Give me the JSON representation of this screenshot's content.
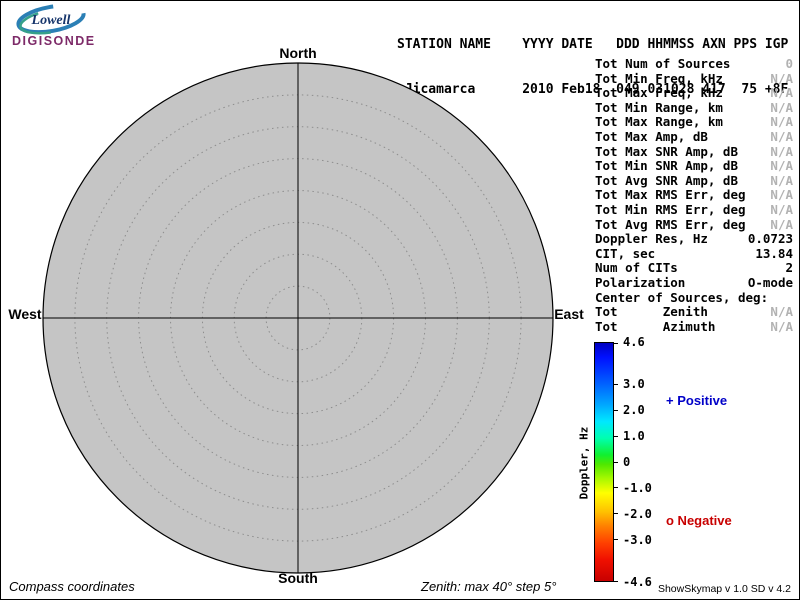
{
  "logo": {
    "line1": "Lowell",
    "line2": "DIGISONDE"
  },
  "header": {
    "line1": "STATION NAME    YYYY DATE   DDD HHMMSS AXN PPS IGP",
    "line2": " Jicamarca      2010 Feb18  049 031028 417  75 +8F"
  },
  "skymap": {
    "north": "North",
    "south": "South",
    "east": "East",
    "west": "West",
    "zenith_max_deg": 40,
    "zenith_step_deg": 5,
    "ring_count": 8,
    "sources": []
  },
  "stats": {
    "rows": [
      {
        "label": "Tot Num of Sources",
        "value": "0",
        "muted": true
      },
      {
        "label": "Tot Min Freq, kHz",
        "value": "N/A",
        "muted": true
      },
      {
        "label": "Tot Max Freq, kHz",
        "value": "N/A",
        "muted": true
      },
      {
        "label": "Tot Min Range, km",
        "value": "N/A",
        "muted": true
      },
      {
        "label": "Tot Max Range, km",
        "value": "N/A",
        "muted": true
      },
      {
        "label": "Tot Max Amp, dB",
        "value": "N/A",
        "muted": true
      },
      {
        "label": "Tot Max SNR Amp, dB",
        "value": "N/A",
        "muted": true
      },
      {
        "label": "Tot Min SNR Amp, dB",
        "value": "N/A",
        "muted": true
      },
      {
        "label": "Tot Avg SNR Amp, dB",
        "value": "N/A",
        "muted": true
      },
      {
        "label": "Tot Max RMS Err, deg",
        "value": "N/A",
        "muted": true
      },
      {
        "label": "Tot Min RMS Err, deg",
        "value": "N/A",
        "muted": true
      },
      {
        "label": "Tot Avg RMS Err, deg",
        "value": "N/A",
        "muted": true
      },
      {
        "label": "Doppler Res, Hz",
        "value": "0.0723",
        "muted": false
      },
      {
        "label": "CIT, sec",
        "value": "13.84",
        "muted": false
      },
      {
        "label": "Num of CITs",
        "value": "2",
        "muted": false
      },
      {
        "label": "Polarization",
        "value": "O-mode",
        "muted": false
      },
      {
        "label": "Center of Sources, deg:",
        "value": "",
        "muted": false
      },
      {
        "label": "Tot      Zenith",
        "value": "N/A",
        "muted": true
      },
      {
        "label": "Tot      Azimuth",
        "value": "N/A",
        "muted": true
      }
    ]
  },
  "colorbar": {
    "label": "Doppler, Hz",
    "max": 4.6,
    "min": -4.6,
    "ticks": [
      {
        "v": 4.6,
        "label": "4.6"
      },
      {
        "v": 3.0,
        "label": "3.0"
      },
      {
        "v": 2.0,
        "label": "2.0"
      },
      {
        "v": 1.0,
        "label": "1.0"
      },
      {
        "v": 0,
        "label": "0"
      },
      {
        "v": -1.0,
        "label": "-1.0"
      },
      {
        "v": -2.0,
        "label": "-2.0"
      },
      {
        "v": -3.0,
        "label": "-3.0"
      },
      {
        "v": -4.6,
        "label": "-4.6"
      }
    ],
    "positive_label": "+ Positive",
    "negative_label": "o Negative",
    "positive_color": "#0000c8",
    "negative_color": "#c80000"
  },
  "footer": {
    "left": "Compass coordinates",
    "center": "Zenith: max 40°  step 5°",
    "right": "ShowSkymap v 1.0  SD v 4.2"
  }
}
